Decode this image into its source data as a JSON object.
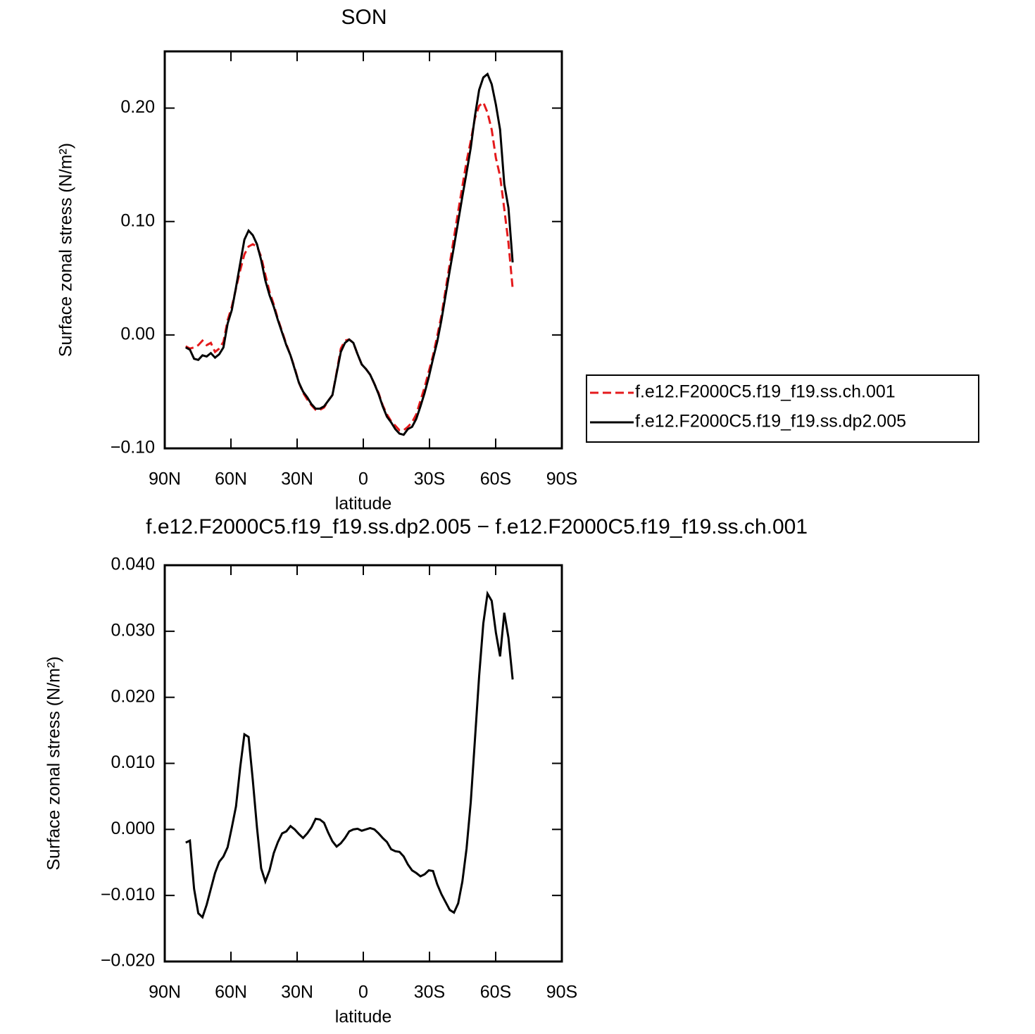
{
  "chart_data": [
    {
      "type": "line",
      "title": "SON",
      "xlabel": "latitude",
      "ylabel": "Surface zonal stress (N/m²)",
      "x": [
        80.5,
        78.6,
        76.7,
        74.8,
        72.9,
        71.0,
        69.1,
        67.2,
        65.3,
        63.4,
        61.5,
        59.6,
        57.7,
        55.8,
        53.9,
        52.0,
        50.1,
        48.2,
        46.3,
        44.4,
        42.5,
        40.6,
        38.7,
        36.8,
        34.9,
        33.0,
        31.1,
        29.2,
        27.3,
        25.4,
        23.5,
        21.6,
        19.7,
        17.8,
        15.9,
        14.0,
        12.1,
        10.2,
        8.3,
        6.4,
        4.5,
        2.6,
        0.7,
        -1.2,
        -3.1,
        -5.0,
        -6.9,
        -8.8,
        -10.7,
        -12.6,
        -14.5,
        -16.4,
        -18.3,
        -20.2,
        -22.1,
        -24.0,
        -25.9,
        -27.8,
        -29.7,
        -31.6,
        -33.5,
        -35.4,
        -37.3,
        -39.2,
        -41.1,
        -43.0,
        -44.9,
        -46.8,
        -48.7,
        -50.6,
        -52.5,
        -54.4,
        -56.3,
        -58.2,
        -60.1,
        -62.0,
        -63.9,
        -65.8,
        -67.7
      ],
      "series": [
        {
          "name": "f.e12.F2000C5.f19_f19.ss.ch.001",
          "color": "#e41a1c",
          "dash": true,
          "values": [
            -0.01,
            -0.012,
            -0.011,
            -0.009,
            -0.005,
            -0.009,
            -0.007,
            -0.015,
            -0.012,
            -0.006,
            0.013,
            0.025,
            0.041,
            0.057,
            0.071,
            0.078,
            0.08,
            0.078,
            0.069,
            0.053,
            0.038,
            0.027,
            0.014,
            0.003,
            -0.008,
            -0.018,
            -0.029,
            -0.042,
            -0.051,
            -0.057,
            -0.062,
            -0.066,
            -0.066,
            -0.064,
            -0.058,
            -0.053,
            -0.033,
            -0.012,
            -0.005,
            -0.004,
            -0.007,
            -0.017,
            -0.026,
            -0.03,
            -0.035,
            -0.043,
            -0.051,
            -0.062,
            -0.07,
            -0.076,
            -0.08,
            -0.084,
            -0.084,
            -0.081,
            -0.077,
            -0.07,
            -0.058,
            -0.046,
            -0.032,
            -0.018,
            -0.001,
            0.017,
            0.04,
            0.063,
            0.086,
            0.109,
            0.131,
            0.153,
            0.171,
            0.191,
            0.202,
            0.205,
            0.196,
            0.181,
            0.156,
            0.14,
            0.111,
            0.081,
            0.041
          ]
        },
        {
          "name": "f.e12.F2000C5.f19_f19.ss.dp2.005",
          "color": "#000000",
          "dash": false,
          "values": [
            -0.011,
            -0.013,
            -0.021,
            -0.022,
            -0.018,
            -0.019,
            -0.016,
            -0.02,
            -0.017,
            -0.011,
            0.01,
            0.022,
            0.042,
            0.063,
            0.084,
            0.092,
            0.088,
            0.08,
            0.066,
            0.048,
            0.035,
            0.025,
            0.013,
            0.002,
            -0.009,
            -0.018,
            -0.03,
            -0.042,
            -0.05,
            -0.055,
            -0.061,
            -0.065,
            -0.065,
            -0.063,
            -0.058,
            -0.053,
            -0.034,
            -0.015,
            -0.007,
            -0.004,
            -0.007,
            -0.017,
            -0.026,
            -0.03,
            -0.035,
            -0.043,
            -0.052,
            -0.063,
            -0.072,
            -0.077,
            -0.083,
            -0.087,
            -0.088,
            -0.083,
            -0.081,
            -0.074,
            -0.063,
            -0.051,
            -0.037,
            -0.021,
            -0.006,
            0.013,
            0.035,
            0.057,
            0.078,
            0.1,
            0.122,
            0.143,
            0.165,
            0.193,
            0.216,
            0.227,
            0.23,
            0.221,
            0.203,
            0.181,
            0.133,
            0.112,
            0.064
          ]
        }
      ],
      "xlim": [
        90,
        -90
      ],
      "xticks": [
        {
          "value": 90,
          "label": "90N"
        },
        {
          "value": 60,
          "label": "60N"
        },
        {
          "value": 30,
          "label": "30N"
        },
        0,
        {
          "value": -30,
          "label": "30S"
        },
        {
          "value": -60,
          "label": "60S"
        },
        {
          "value": -90,
          "label": "90S"
        }
      ],
      "ylim": [
        -0.1,
        0.25
      ],
      "yticks": [
        {
          "value": -0.1,
          "label": "−0.10"
        },
        {
          "value": 0,
          "label": "0.00"
        },
        {
          "value": 0.1,
          "label": "0.10"
        },
        {
          "value": 0.2,
          "label": "0.20"
        }
      ],
      "legend": "right"
    },
    {
      "type": "line",
      "title": "f.e12.F2000C5.f19_f19.ss.dp2.005 − f.e12.F2000C5.f19_f19.ss.ch.001",
      "xlabel": "latitude",
      "ylabel": "Surface zonal stress (N/m²)",
      "x": [
        80.5,
        78.6,
        76.7,
        74.8,
        72.9,
        71.0,
        69.1,
        67.2,
        65.3,
        63.4,
        61.5,
        59.6,
        57.7,
        55.8,
        53.9,
        52.0,
        50.1,
        48.2,
        46.3,
        44.4,
        42.5,
        40.6,
        38.7,
        36.8,
        34.9,
        33.0,
        31.1,
        29.2,
        27.3,
        25.4,
        23.5,
        21.6,
        19.7,
        17.8,
        15.9,
        14.0,
        12.1,
        10.2,
        8.3,
        6.4,
        4.5,
        2.6,
        0.7,
        -1.2,
        -3.1,
        -5.0,
        -6.9,
        -8.8,
        -10.7,
        -12.6,
        -14.5,
        -16.4,
        -18.3,
        -20.2,
        -22.1,
        -24.0,
        -25.9,
        -27.8,
        -29.7,
        -31.6,
        -33.5,
        -35.4,
        -37.3,
        -39.2,
        -41.1,
        -43.0,
        -44.9,
        -46.8,
        -48.7,
        -50.6,
        -52.5,
        -54.4,
        -56.3,
        -58.2,
        -60.1,
        -62.0,
        -63.9,
        -65.8,
        -67.7
      ],
      "series": [
        {
          "color": "#000000",
          "dash": false,
          "values": [
            -0.002,
            -0.0017,
            -0.009,
            -0.0127,
            -0.0133,
            -0.0114,
            -0.009,
            -0.0066,
            -0.0049,
            -0.0041,
            -0.0027,
            0.0003,
            0.0035,
            0.0094,
            0.0144,
            0.014,
            0.0075,
            0.0003,
            -0.0059,
            -0.0079,
            -0.0062,
            -0.0036,
            -0.0019,
            -0.0006,
            -0.0003,
            0.0005,
            0.0,
            -0.0007,
            -0.0013,
            -0.0006,
            0.0003,
            0.0016,
            0.0015,
            0.001,
            -0.0005,
            -0.0018,
            -0.0026,
            -0.0021,
            -0.0013,
            -0.0003,
            0.0,
            0.0001,
            -0.0002,
            0.0,
            0.0002,
            0.0,
            -0.0006,
            -0.0013,
            -0.0019,
            -0.003,
            -0.0033,
            -0.0034,
            -0.0041,
            -0.0053,
            -0.0062,
            -0.0066,
            -0.0071,
            -0.0068,
            -0.0062,
            -0.0063,
            -0.0083,
            -0.0098,
            -0.011,
            -0.0122,
            -0.0126,
            -0.0112,
            -0.0079,
            -0.0029,
            0.0041,
            0.0136,
            0.0232,
            0.0312,
            0.0357,
            0.0346,
            0.0298,
            0.0262,
            0.0328,
            0.029,
            0.0227
          ]
        }
      ],
      "xlim": [
        90,
        -90
      ],
      "xticks": [
        {
          "value": 90,
          "label": "90N"
        },
        {
          "value": 60,
          "label": "60N"
        },
        {
          "value": 30,
          "label": "30N"
        },
        0,
        {
          "value": -30,
          "label": "30S"
        },
        {
          "value": -60,
          "label": "60S"
        },
        {
          "value": -90,
          "label": "90S"
        }
      ],
      "ylim": [
        -0.02,
        0.04
      ],
      "yticks": [
        {
          "value": -0.02,
          "label": "−0.020"
        },
        {
          "value": -0.01,
          "label": "−0.010"
        },
        {
          "value": 0,
          "label": "0.000"
        },
        {
          "value": 0.01,
          "label": "0.010"
        },
        {
          "value": 0.02,
          "label": "0.020"
        },
        {
          "value": 0.03,
          "label": "0.030"
        },
        {
          "value": 0.04,
          "label": "0.040"
        }
      ]
    }
  ]
}
